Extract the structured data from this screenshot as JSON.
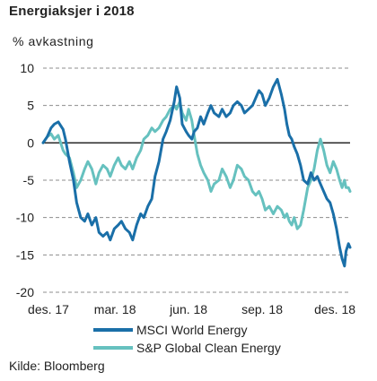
{
  "chart_data": {
    "type": "line",
    "title": "Energiaksjer i 2018",
    "ylabel": "% avkastning",
    "xlabel": "",
    "ylim": [
      -20,
      10
    ],
    "yticks": [
      10,
      5,
      0,
      -5,
      -10,
      -15,
      -20
    ],
    "x_ticks": [
      "des. 17",
      "mar. 18",
      "jun. 18",
      "sep. 18",
      "des. 18"
    ],
    "x_range": [
      "2017-12-01",
      "2018-12-20"
    ],
    "grid": "horizontal dashed",
    "legend_position": "bottom",
    "series": [
      {
        "name": "MSCI World Energy",
        "color": "#1a6fa8",
        "points": [
          [
            "2017-12-01",
            0.0
          ],
          [
            "2017-12-06",
            0.8
          ],
          [
            "2017-12-11",
            2.0
          ],
          [
            "2017-12-15",
            2.5
          ],
          [
            "2017-12-20",
            2.8
          ],
          [
            "2017-12-26",
            1.8
          ],
          [
            "2017-12-29",
            0.5
          ],
          [
            "2018-01-03",
            -2.5
          ],
          [
            "2018-01-08",
            -5.0
          ],
          [
            "2018-01-12",
            -8.0
          ],
          [
            "2018-01-17",
            -10.0
          ],
          [
            "2018-01-22",
            -10.5
          ],
          [
            "2018-01-26",
            -9.5
          ],
          [
            "2018-01-31",
            -11.0
          ],
          [
            "2018-02-05",
            -10.0
          ],
          [
            "2018-02-09",
            -12.0
          ],
          [
            "2018-02-14",
            -12.5
          ],
          [
            "2018-02-19",
            -12.0
          ],
          [
            "2018-02-23",
            -13.0
          ],
          [
            "2018-02-28",
            -11.5
          ],
          [
            "2018-03-05",
            -11.0
          ],
          [
            "2018-03-09",
            -10.5
          ],
          [
            "2018-03-14",
            -11.5
          ],
          [
            "2018-03-19",
            -12.0
          ],
          [
            "2018-03-23",
            -13.0
          ],
          [
            "2018-03-28",
            -11.0
          ],
          [
            "2018-04-02",
            -9.5
          ],
          [
            "2018-04-06",
            -10.0
          ],
          [
            "2018-04-11",
            -8.5
          ],
          [
            "2018-04-16",
            -7.5
          ],
          [
            "2018-04-20",
            -4.5
          ],
          [
            "2018-04-25",
            -2.5
          ],
          [
            "2018-04-30",
            0.5
          ],
          [
            "2018-05-04",
            1.5
          ],
          [
            "2018-05-09",
            3.0
          ],
          [
            "2018-05-14",
            5.5
          ],
          [
            "2018-05-17",
            7.5
          ],
          [
            "2018-05-21",
            6.0
          ],
          [
            "2018-05-24",
            2.5
          ],
          [
            "2018-05-29",
            1.5
          ],
          [
            "2018-06-01",
            1.0
          ],
          [
            "2018-06-05",
            0.5
          ],
          [
            "2018-06-08",
            1.5
          ],
          [
            "2018-06-12",
            2.0
          ],
          [
            "2018-06-16",
            3.5
          ],
          [
            "2018-06-20",
            2.5
          ],
          [
            "2018-06-25",
            4.0
          ],
          [
            "2018-06-29",
            5.0
          ],
          [
            "2018-07-03",
            4.0
          ],
          [
            "2018-07-09",
            3.5
          ],
          [
            "2018-07-13",
            4.5
          ],
          [
            "2018-07-18",
            3.5
          ],
          [
            "2018-07-23",
            4.0
          ],
          [
            "2018-07-27",
            5.0
          ],
          [
            "2018-08-01",
            5.5
          ],
          [
            "2018-08-06",
            5.0
          ],
          [
            "2018-08-10",
            4.0
          ],
          [
            "2018-08-15",
            4.5
          ],
          [
            "2018-08-20",
            5.0
          ],
          [
            "2018-08-24",
            6.0
          ],
          [
            "2018-08-28",
            7.0
          ],
          [
            "2018-09-01",
            6.5
          ],
          [
            "2018-09-05",
            5.0
          ],
          [
            "2018-09-10",
            6.0
          ],
          [
            "2018-09-15",
            7.5
          ],
          [
            "2018-09-20",
            8.5
          ],
          [
            "2018-09-25",
            6.5
          ],
          [
            "2018-09-29",
            4.5
          ],
          [
            "2018-10-02",
            2.5
          ],
          [
            "2018-10-05",
            1.0
          ],
          [
            "2018-10-08",
            0.5
          ],
          [
            "2018-10-11",
            -0.5
          ],
          [
            "2018-10-15",
            -1.5
          ],
          [
            "2018-10-19",
            -3.0
          ],
          [
            "2018-10-23",
            -5.0
          ],
          [
            "2018-10-28",
            -5.5
          ],
          [
            "2018-11-01",
            -4.0
          ],
          [
            "2018-11-05",
            -5.0
          ],
          [
            "2018-11-09",
            -4.5
          ],
          [
            "2018-11-13",
            -5.5
          ],
          [
            "2018-11-17",
            -6.5
          ],
          [
            "2018-11-21",
            -7.5
          ],
          [
            "2018-11-25",
            -8.0
          ],
          [
            "2018-11-29",
            -9.5
          ],
          [
            "2018-12-03",
            -11.5
          ],
          [
            "2018-12-07",
            -14.0
          ],
          [
            "2018-12-10",
            -15.5
          ],
          [
            "2018-12-13",
            -16.5
          ],
          [
            "2018-12-15",
            -14.5
          ],
          [
            "2018-12-18",
            -13.5
          ],
          [
            "2018-12-20",
            -14.0
          ]
        ]
      },
      {
        "name": "S&P Global Clean Energy",
        "color": "#66c1bf",
        "points": [
          [
            "2017-12-01",
            0.0
          ],
          [
            "2017-12-06",
            0.8
          ],
          [
            "2017-12-11",
            1.2
          ],
          [
            "2017-12-15",
            0.5
          ],
          [
            "2017-12-20",
            1.0
          ],
          [
            "2017-12-26",
            -1.0
          ],
          [
            "2017-12-29",
            -1.5
          ],
          [
            "2018-01-03",
            -2.0
          ],
          [
            "2018-01-08",
            -4.0
          ],
          [
            "2018-01-12",
            -6.0
          ],
          [
            "2018-01-17",
            -5.0
          ],
          [
            "2018-01-22",
            -3.5
          ],
          [
            "2018-01-26",
            -2.5
          ],
          [
            "2018-01-31",
            -3.5
          ],
          [
            "2018-02-05",
            -5.5
          ],
          [
            "2018-02-09",
            -4.0
          ],
          [
            "2018-02-14",
            -3.0
          ],
          [
            "2018-02-19",
            -3.5
          ],
          [
            "2018-02-23",
            -4.5
          ],
          [
            "2018-02-28",
            -3.0
          ],
          [
            "2018-03-05",
            -2.0
          ],
          [
            "2018-03-09",
            -3.0
          ],
          [
            "2018-03-14",
            -3.5
          ],
          [
            "2018-03-19",
            -2.5
          ],
          [
            "2018-03-23",
            -3.5
          ],
          [
            "2018-03-28",
            -2.0
          ],
          [
            "2018-04-02",
            -1.0
          ],
          [
            "2018-04-06",
            0.5
          ],
          [
            "2018-04-11",
            1.0
          ],
          [
            "2018-04-16",
            2.0
          ],
          [
            "2018-04-20",
            1.5
          ],
          [
            "2018-04-25",
            2.0
          ],
          [
            "2018-04-30",
            3.0
          ],
          [
            "2018-05-04",
            3.5
          ],
          [
            "2018-05-09",
            4.5
          ],
          [
            "2018-05-14",
            5.0
          ],
          [
            "2018-05-17",
            4.5
          ],
          [
            "2018-05-21",
            5.5
          ],
          [
            "2018-05-24",
            4.0
          ],
          [
            "2018-05-29",
            3.0
          ],
          [
            "2018-06-01",
            4.5
          ],
          [
            "2018-06-05",
            3.0
          ],
          [
            "2018-06-08",
            1.0
          ],
          [
            "2018-06-12",
            -1.5
          ],
          [
            "2018-06-16",
            -3.0
          ],
          [
            "2018-06-20",
            -4.0
          ],
          [
            "2018-06-25",
            -5.0
          ],
          [
            "2018-06-29",
            -6.5
          ],
          [
            "2018-07-03",
            -5.5
          ],
          [
            "2018-07-09",
            -5.0
          ],
          [
            "2018-07-13",
            -3.5
          ],
          [
            "2018-07-18",
            -4.5
          ],
          [
            "2018-07-23",
            -6.0
          ],
          [
            "2018-07-27",
            -5.0
          ],
          [
            "2018-08-01",
            -3.0
          ],
          [
            "2018-08-06",
            -3.5
          ],
          [
            "2018-08-10",
            -4.5
          ],
          [
            "2018-08-15",
            -5.0
          ],
          [
            "2018-08-20",
            -6.5
          ],
          [
            "2018-08-24",
            -7.0
          ],
          [
            "2018-08-28",
            -6.5
          ],
          [
            "2018-09-01",
            -7.5
          ],
          [
            "2018-09-05",
            -9.0
          ],
          [
            "2018-09-10",
            -8.5
          ],
          [
            "2018-09-15",
            -9.5
          ],
          [
            "2018-09-20",
            -8.5
          ],
          [
            "2018-09-25",
            -9.0
          ],
          [
            "2018-09-29",
            -10.0
          ],
          [
            "2018-10-02",
            -9.5
          ],
          [
            "2018-10-05",
            -10.5
          ],
          [
            "2018-10-08",
            -11.0
          ],
          [
            "2018-10-11",
            -10.0
          ],
          [
            "2018-10-15",
            -11.5
          ],
          [
            "2018-10-19",
            -11.0
          ],
          [
            "2018-10-23",
            -9.0
          ],
          [
            "2018-10-28",
            -6.0
          ],
          [
            "2018-11-01",
            -5.0
          ],
          [
            "2018-11-05",
            -3.5
          ],
          [
            "2018-11-09",
            -1.0
          ],
          [
            "2018-11-13",
            0.5
          ],
          [
            "2018-11-17",
            -1.0
          ],
          [
            "2018-11-21",
            -3.0
          ],
          [
            "2018-11-25",
            -4.0
          ],
          [
            "2018-11-29",
            -2.5
          ],
          [
            "2018-12-03",
            -3.5
          ],
          [
            "2018-12-07",
            -5.0
          ],
          [
            "2018-12-10",
            -6.0
          ],
          [
            "2018-12-13",
            -5.0
          ],
          [
            "2018-12-15",
            -6.0
          ],
          [
            "2018-12-18",
            -6.0
          ],
          [
            "2018-12-20",
            -6.5
          ]
        ]
      }
    ]
  },
  "source": "Kilde: Bloomberg"
}
